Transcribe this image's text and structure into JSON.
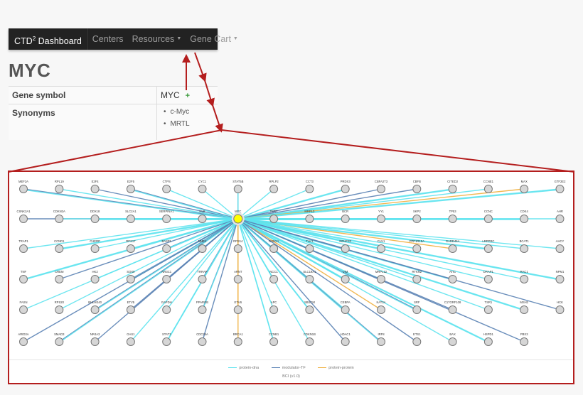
{
  "navbar": {
    "brand": "CTD",
    "brand_sup": "2",
    "brand_suffix": " Dashboard",
    "items": [
      {
        "label": "Centers",
        "dropdown": false
      },
      {
        "label": "Resources",
        "dropdown": true
      },
      {
        "label": "Gene Cart",
        "dropdown": true
      }
    ]
  },
  "page": {
    "title": "MYC"
  },
  "info_table": {
    "gene_symbol_label": "Gene symbol",
    "gene_symbol_value": "MYC",
    "add_to_cart_icon": "+",
    "synonyms_label": "Synonyms",
    "synonyms": [
      "c-Myc",
      "MRTL"
    ]
  },
  "network": {
    "center": {
      "label": "MYC",
      "color": "#ffff00"
    },
    "edge_colors": {
      "protein-dna": "#5ee3ee",
      "modulator-TF": "#5a82b4",
      "protein-protein": "#f0b040"
    },
    "rows": [
      [
        "MEF2A",
        "RPL19",
        "E2F4",
        "E2F5",
        "CTPS",
        "CYC1",
        "STAT5B",
        "RPLP2",
        "CCT3",
        "PRDX3",
        "CBFA2T3",
        "CBFB",
        "CITED2",
        "CCNE1",
        "MAX",
        "GTF2E2"
      ],
      [
        "CSNK2A1",
        "CDKN2A",
        "DDX18",
        "SLC2A1",
        "SERPINA1",
        "HLB",
        "MYC",
        "TERT",
        "MRPL3",
        "BCR",
        "YY1",
        "SKP2",
        "TP53",
        "CCNC",
        "CDK4",
        "AHR"
      ],
      [
        "TRAP1",
        "CCND1",
        "CHERP",
        "RPS17",
        "BASP1",
        "NME1",
        "RPS14",
        "RUNX1",
        "TLK1",
        "NDUFS2",
        "CUL1",
        "PPP1R15A",
        "GADD45A",
        "LRPPRC",
        "BCAT1",
        "AHCY"
      ],
      [
        "TNF",
        "CREM",
        "HK2",
        "SOX9",
        "NR3C1",
        "TRRAP",
        "ARNT",
        "NCC1",
        "SLC19A1",
        "VIM",
        "MRPL12",
        "RTKN2",
        "ATIC",
        "DRAP1",
        "RAC1",
        "NPM1"
      ],
      [
        "FASN",
        "RPS20",
        "BHLHE40",
        "ETV5",
        "GAPDH",
        "PPARGB",
        "ETV6",
        "APC",
        "SBSCM",
        "CEBPA",
        "KAT2A",
        "SRF",
        "C17ORF108",
        "TSR1",
        "MSH2",
        "HCK"
      ],
      [
        "ARID3A",
        "SMAD3",
        "NR4A3",
        "GAS1",
        "STAT3",
        "CDC25A",
        "BRCA1",
        "CCNB1",
        "CDKN1B",
        "HDAC1",
        "IRF8",
        "ETS1",
        "BAX",
        "HSPD1",
        "PBX3",
        ""
      ]
    ],
    "legend": [
      {
        "label": "protein-dna",
        "color": "#5ee3ee"
      },
      {
        "label": "modulator-TF",
        "color": "#5a82b4"
      },
      {
        "label": "protein-protein",
        "color": "#f0b040"
      }
    ],
    "version": "BCI (v1.0)"
  }
}
